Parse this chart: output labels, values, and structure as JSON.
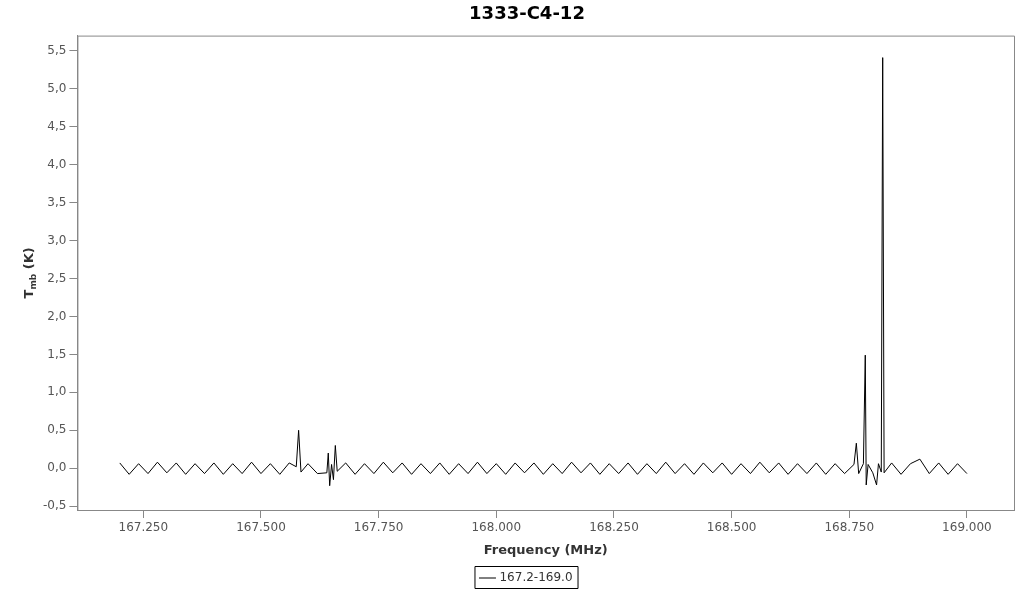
{
  "chart_data": {
    "type": "line",
    "title": "1333-C4-12",
    "xlabel": "Frequency (MHz)",
    "ylabel": "T$_{mb}$ (K)",
    "xlim": [
      167110,
      169100
    ],
    "ylim": [
      -0.55,
      5.7
    ],
    "xticks": [
      {
        "value": 167250,
        "label": "167.250"
      },
      {
        "value": 167500,
        "label": "167.500"
      },
      {
        "value": 167750,
        "label": "167.750"
      },
      {
        "value": 168000,
        "label": "168.000"
      },
      {
        "value": 168250,
        "label": "168.250"
      },
      {
        "value": 168500,
        "label": "168.500"
      },
      {
        "value": 168750,
        "label": "168.750"
      },
      {
        "value": 169000,
        "label": "169.000"
      }
    ],
    "yticks": [
      {
        "value": -0.5,
        "label": "-0,5"
      },
      {
        "value": 0,
        "label": "0,0"
      },
      {
        "value": 0.5,
        "label": "0,5"
      },
      {
        "value": 1,
        "label": "1,0"
      },
      {
        "value": 1.5,
        "label": "1,5"
      },
      {
        "value": 2,
        "label": "2,0"
      },
      {
        "value": 2.5,
        "label": "2,5"
      },
      {
        "value": 3,
        "label": "3,0"
      },
      {
        "value": 3.5,
        "label": "3,5"
      },
      {
        "value": 4,
        "label": "4,0"
      },
      {
        "value": 4.5,
        "label": "4,5"
      },
      {
        "value": 5,
        "label": "5,0"
      },
      {
        "value": 5.5,
        "label": "5,5"
      }
    ],
    "grid": false,
    "legend": "bottom",
    "marker": "none",
    "line_style": "solid",
    "series": [
      {
        "name": "167.2-169.0",
        "color": "#000000",
        "x": [
          167200,
          167220,
          167240,
          167260,
          167280,
          167300,
          167320,
          167340,
          167360,
          167380,
          167400,
          167420,
          167440,
          167460,
          167480,
          167500,
          167520,
          167540,
          167560,
          167575,
          167580,
          167585,
          167600,
          167620,
          167640,
          167643,
          167646,
          167650,
          167654,
          167658,
          167662,
          167680,
          167700,
          167720,
          167740,
          167760,
          167780,
          167800,
          167820,
          167840,
          167860,
          167880,
          167900,
          167920,
          167940,
          167960,
          167980,
          168000,
          168020,
          168040,
          168060,
          168080,
          168100,
          168120,
          168140,
          168160,
          168180,
          168200,
          168220,
          168240,
          168260,
          168280,
          168300,
          168320,
          168340,
          168360,
          168380,
          168400,
          168420,
          168440,
          168460,
          168480,
          168500,
          168520,
          168540,
          168560,
          168580,
          168600,
          168620,
          168640,
          168660,
          168680,
          168700,
          168720,
          168740,
          168760,
          168765,
          168770,
          168780,
          168784,
          168786,
          168790,
          168800,
          168808,
          168812,
          168818,
          168821,
          168824,
          168840,
          168860,
          168880,
          168900,
          168920,
          168940,
          168960,
          168980,
          169000
        ],
        "values": [
          0.07,
          -0.08,
          0.06,
          -0.07,
          0.08,
          -0.06,
          0.07,
          -0.08,
          0.06,
          -0.07,
          0.07,
          -0.08,
          0.06,
          -0.07,
          0.08,
          -0.07,
          0.06,
          -0.08,
          0.07,
          0.02,
          0.5,
          -0.05,
          0.06,
          -0.07,
          -0.06,
          0.2,
          -0.23,
          0.05,
          -0.15,
          0.3,
          -0.04,
          0.07,
          -0.08,
          0.06,
          -0.07,
          0.08,
          -0.06,
          0.07,
          -0.08,
          0.06,
          -0.07,
          0.07,
          -0.08,
          0.06,
          -0.07,
          0.08,
          -0.07,
          0.06,
          -0.08,
          0.07,
          -0.06,
          0.07,
          -0.08,
          0.06,
          -0.07,
          0.08,
          -0.06,
          0.07,
          -0.08,
          0.06,
          -0.07,
          0.07,
          -0.08,
          0.06,
          -0.07,
          0.08,
          -0.07,
          0.06,
          -0.08,
          0.07,
          -0.06,
          0.07,
          -0.08,
          0.06,
          -0.07,
          0.08,
          -0.06,
          0.07,
          -0.08,
          0.06,
          -0.07,
          0.07,
          -0.08,
          0.06,
          -0.07,
          0.05,
          0.33,
          -0.07,
          0.06,
          1.49,
          -0.22,
          0.05,
          -0.06,
          -0.22,
          0.06,
          -0.05,
          5.41,
          -0.06,
          0.07,
          -0.08,
          0.06,
          0.12,
          -0.07,
          0.07,
          -0.08,
          0.06,
          -0.07
        ]
      }
    ]
  }
}
